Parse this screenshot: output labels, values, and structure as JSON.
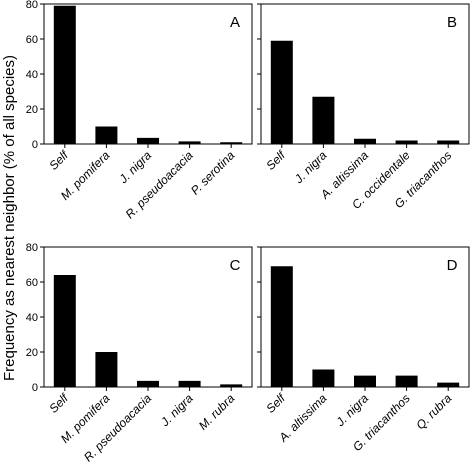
{
  "ylabel": "Frequency as nearest neighbor (% of all species)",
  "chart_data": [
    {
      "type": "bar",
      "panel": "A",
      "categories": [
        "Self",
        "M. pomifera",
        "J. nigra",
        "R. pseudoacacia",
        "P. serotina"
      ],
      "values": [
        79,
        10,
        3.5,
        1.5,
        1
      ],
      "ylim": [
        0,
        80
      ],
      "yticks": [
        0,
        20,
        40,
        60,
        80
      ],
      "show_ytick_labels": true
    },
    {
      "type": "bar",
      "panel": "B",
      "categories": [
        "Self",
        "J. nigra",
        "A. altissima",
        "C. occidentale",
        "G. triacanthos"
      ],
      "values": [
        59,
        27,
        3,
        2,
        2
      ],
      "ylim": [
        0,
        80
      ],
      "yticks": [
        0,
        20,
        40,
        60,
        80
      ],
      "show_ytick_labels": false
    },
    {
      "type": "bar",
      "panel": "C",
      "categories": [
        "Self",
        "M. pomifera",
        "R. pseudoacacia",
        "J. nigra",
        "M. rubra"
      ],
      "values": [
        64,
        20,
        3.5,
        3.5,
        1.5
      ],
      "ylim": [
        0,
        80
      ],
      "yticks": [
        0,
        20,
        40,
        60,
        80
      ],
      "show_ytick_labels": true
    },
    {
      "type": "bar",
      "panel": "D",
      "categories": [
        "Self",
        "A. altissima",
        "J. nigra",
        "G. triacanthos",
        "Q. rubra"
      ],
      "values": [
        69,
        10,
        6.5,
        6.5,
        2.5
      ],
      "ylim": [
        0,
        80
      ],
      "yticks": [
        0,
        20,
        40,
        60,
        80
      ],
      "show_ytick_labels": false
    }
  ]
}
